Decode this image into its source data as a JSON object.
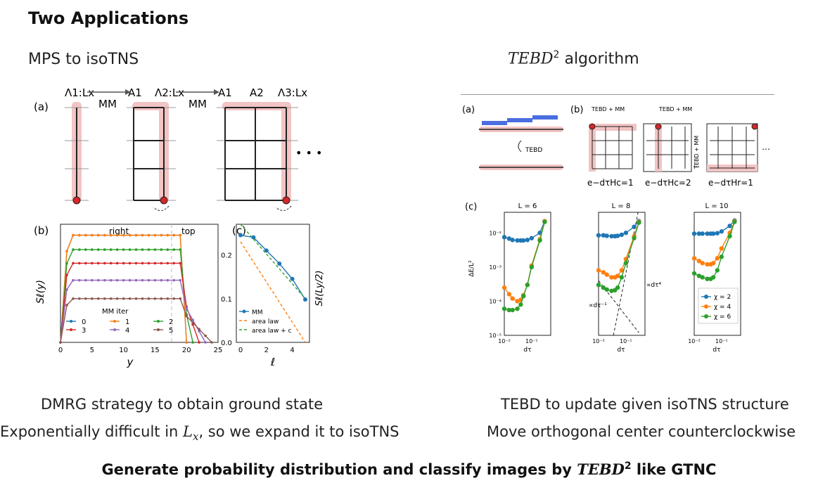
{
  "slide": {
    "title": "Two Applications",
    "left_header": "MPS to isoTNS",
    "right_header_math": "TEBD",
    "right_header_sup": "2",
    "right_header_text": " algorithm",
    "left_lines": [
      "DMRG strategy to obtain ground state",
      "Exponentially difficult in ",
      "L",
      "x",
      ", so we expand it to isoTNS"
    ],
    "right_lines": [
      "TEBD to update given isoTNS structure",
      "Move orthogonal center counterclockwise"
    ],
    "bottom_pre": "Generate probability distribution and classify images by ",
    "bottom_math": "TEBD",
    "bottom_sup": "2",
    "bottom_post": " like GTNC"
  },
  "fig_left": {
    "panel_a": "(a)",
    "panel_b": "(b)",
    "panel_c": "(c)",
    "op_labels": [
      "MM",
      "MM"
    ],
    "tensor_labels": [
      "Λ1:Lx",
      "A1",
      "Λ2:Lx",
      "A1",
      "A2",
      "Λ3:Lx"
    ],
    "ellipsis": "• • •",
    "b_region_labels": [
      "right",
      "top"
    ],
    "b_ylabel": "Sℓ(y)",
    "b_xlabel": "y",
    "b_legend_title": "MM iter",
    "c_ylabel": "Sℓ(Ly/2)",
    "c_xlabel": "ℓ",
    "c_legend": [
      "MM",
      "area law",
      "area law + c"
    ]
  },
  "fig_right": {
    "panel_a": "(a)",
    "panel_b": "(b)",
    "panel_c": "(c)",
    "tebd_label": "TEBD",
    "tebd_mm": [
      "TEBD + MM",
      "TEBD + MM",
      "TEBD + MM"
    ],
    "exp_labels": [
      "e−dτHc=1",
      "e−dτHc=2",
      "e−dτHr=1"
    ],
    "ellipsis": "⋯",
    "subplot_titles": [
      "L = 6",
      "L = 8",
      "L = 10"
    ],
    "ylabel": "ΔE/L²",
    "xlabel": "dτ",
    "annotations": [
      "∝dτ⁻¹",
      "∝dτ⁴"
    ],
    "legend": [
      "χ = 2",
      "χ = 4",
      "χ = 6"
    ],
    "y_ticks": [
      "10⁻²",
      "10⁻³",
      "10⁻⁴",
      "10⁻⁵"
    ],
    "x_ticks": [
      "10⁻²",
      "10⁻¹"
    ]
  },
  "chart_data": [
    {
      "type": "line",
      "title": "",
      "xlabel": "y",
      "ylabel": "Sℓ(y)",
      "x_ticks": [
        0,
        5,
        10,
        15,
        20,
        25
      ],
      "y_ticks": [
        0.0,
        0.1,
        0.2
      ],
      "xlim": [
        0,
        25
      ],
      "ylim": [
        0,
        0.27
      ],
      "legend_title": "MM iter",
      "series": [
        {
          "name": "0",
          "color": "#1f77b4",
          "plateau": 0.245,
          "drop_end": 20
        },
        {
          "name": "1",
          "color": "#ff7f0e",
          "plateau": 0.245,
          "drop_end": 20
        },
        {
          "name": "2",
          "color": "#2ca02c",
          "plateau": 0.212,
          "drop_end": 21
        },
        {
          "name": "3",
          "color": "#d62728",
          "plateau": 0.181,
          "drop_end": 22
        },
        {
          "name": "4",
          "color": "#9467bd",
          "plateau": 0.142,
          "drop_end": 23
        },
        {
          "name": "5",
          "color": "#8c564b",
          "plateau": 0.1,
          "drop_end": 24
        }
      ]
    },
    {
      "type": "line",
      "title": "",
      "xlabel": "ℓ",
      "ylabel": "Sℓ(Ly/2)",
      "x_ticks": [
        0,
        2,
        4
      ],
      "xlim": [
        0,
        5
      ],
      "ylim": [
        0,
        0.27
      ],
      "series": [
        {
          "name": "MM",
          "x": [
            0,
            1,
            2,
            3,
            4,
            5
          ],
          "y": [
            0.245,
            0.24,
            0.21,
            0.18,
            0.145,
            0.098
          ],
          "color": "#1f77b4"
        },
        {
          "name": "area law",
          "x": [
            0,
            5
          ],
          "y": [
            0.23,
            0.0
          ],
          "color": "#ff7f0e"
        },
        {
          "name": "area law + c",
          "x": [
            0,
            5
          ],
          "y": [
            0.28,
            0.1
          ],
          "color": "#2ca02c"
        }
      ]
    },
    {
      "type": "line",
      "title": "L = 6",
      "xlabel": "dτ",
      "ylabel": "ΔE/L²",
      "log_x": true,
      "log_y": true,
      "xlim": [
        0.01,
        0.5
      ],
      "ylim": [
        1e-05,
        0.04
      ],
      "x": [
        0.01,
        0.015,
        0.02,
        0.03,
        0.04,
        0.05,
        0.07,
        0.1,
        0.2,
        0.3
      ],
      "series": [
        {
          "name": "χ = 2",
          "color": "#1f77b4",
          "values": [
            0.0075,
            0.0068,
            0.0062,
            0.006,
            0.006,
            0.006,
            0.0062,
            0.007,
            0.01,
            0.022
          ]
        },
        {
          "name": "χ = 4",
          "color": "#ff7f0e",
          "values": [
            0.00025,
            0.00016,
            0.00012,
            0.0001,
            0.00011,
            0.00015,
            0.0003,
            0.0011,
            0.0065,
            0.022
          ]
        },
        {
          "name": "χ = 6",
          "color": "#2ca02c",
          "values": [
            6e-05,
            5.5e-05,
            5.5e-05,
            6e-05,
            8e-05,
            0.00014,
            0.0003,
            0.001,
            0.006,
            0.021
          ]
        }
      ]
    },
    {
      "type": "line",
      "title": "L = 8",
      "xlabel": "dτ",
      "ylabel": "",
      "log_x": true,
      "log_y": true,
      "xlim": [
        0.01,
        0.5
      ],
      "ylim": [
        1e-05,
        0.04
      ],
      "x": [
        0.01,
        0.015,
        0.02,
        0.03,
        0.04,
        0.05,
        0.07,
        0.1,
        0.2,
        0.3
      ],
      "series": [
        {
          "name": "χ = 2",
          "color": "#1f77b4",
          "values": [
            0.0085,
            0.0085,
            0.0082,
            0.008,
            0.008,
            0.0082,
            0.0088,
            0.01,
            0.015,
            0.022
          ]
        },
        {
          "name": "χ = 4",
          "color": "#ff7f0e",
          "values": [
            0.0008,
            0.0007,
            0.0006,
            0.0005,
            0.0005,
            0.00055,
            0.0008,
            0.0017,
            0.008,
            0.021
          ]
        },
        {
          "name": "χ = 6",
          "color": "#2ca02c",
          "values": [
            0.0003,
            0.00025,
            0.00022,
            0.0002,
            0.00021,
            0.00025,
            0.0005,
            0.0013,
            0.007,
            0.02
          ]
        }
      ]
    },
    {
      "type": "line",
      "title": "L = 10",
      "xlabel": "dτ",
      "ylabel": "",
      "log_x": true,
      "log_y": true,
      "xlim": [
        0.01,
        0.5
      ],
      "ylim": [
        1e-05,
        0.04
      ],
      "x": [
        0.01,
        0.015,
        0.02,
        0.03,
        0.04,
        0.05,
        0.07,
        0.1,
        0.2,
        0.3
      ],
      "series": [
        {
          "name": "χ = 2",
          "color": "#1f77b4",
          "values": [
            0.0095,
            0.0095,
            0.0095,
            0.0095,
            0.0095,
            0.0095,
            0.0098,
            0.011,
            0.016,
            0.023
          ]
        },
        {
          "name": "χ = 4",
          "color": "#ff7f0e",
          "values": [
            0.0018,
            0.0015,
            0.0013,
            0.0012,
            0.0012,
            0.0013,
            0.0018,
            0.0035,
            0.01,
            0.022
          ]
        },
        {
          "name": "χ = 6",
          "color": "#2ca02c",
          "values": [
            0.00065,
            0.00055,
            0.0005,
            0.00045,
            0.00045,
            0.0005,
            0.0008,
            0.002,
            0.008,
            0.021
          ]
        }
      ]
    }
  ]
}
